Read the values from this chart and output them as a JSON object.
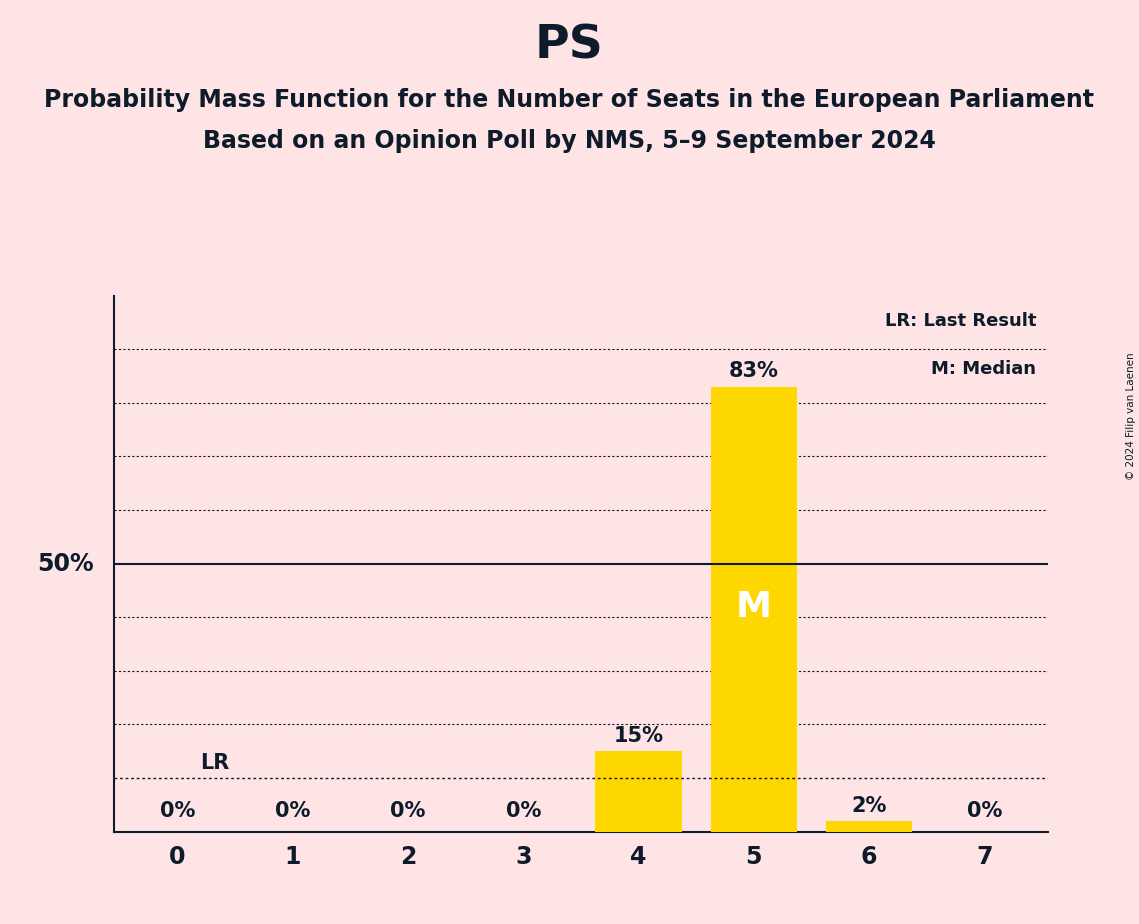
{
  "title": "PS",
  "subtitle1": "Probability Mass Function for the Number of Seats in the European Parliament",
  "subtitle2": "Based on an Opinion Poll by NMS, 5–9 September 2024",
  "copyright": "© 2024 Filip van Laenen",
  "categories": [
    0,
    1,
    2,
    3,
    4,
    5,
    6,
    7
  ],
  "values": [
    0,
    0,
    0,
    0,
    15,
    83,
    2,
    0
  ],
  "bar_color": "#FFD700",
  "background_color": "#FFE4E6",
  "title_fontsize": 34,
  "subtitle_fontsize": 17,
  "ylabel_50_label": "50%",
  "median_bar": 5,
  "last_result_bar": 4,
  "median_label": "M",
  "lr_label": "LR",
  "legend_lr": "LR: Last Result",
  "legend_m": "M: Median",
  "ylim_max": 100,
  "50pct_line": 50,
  "lr_line_value": 10,
  "text_color": "#0d1b2a",
  "dotted_gridlines": [
    20,
    30,
    40,
    60,
    70,
    80,
    90
  ],
  "lr_dotted_line": 10,
  "bar_width": 0.75
}
